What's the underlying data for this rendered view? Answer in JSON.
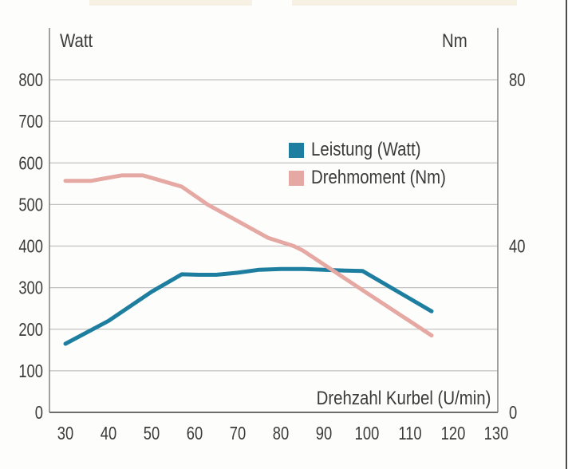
{
  "chart_data": {
    "type": "line",
    "title": "",
    "x_axis": {
      "label": "Drehzahl Kurbel (U/min)",
      "ticks": [
        30,
        40,
        50,
        60,
        70,
        80,
        90,
        100,
        110,
        120,
        130
      ],
      "range": [
        30,
        130
      ]
    },
    "left_axis": {
      "label": "Watt",
      "ticks": [
        0,
        100,
        200,
        300,
        400,
        500,
        600,
        700,
        800
      ],
      "range": [
        0,
        800
      ]
    },
    "right_axis": {
      "label": "Nm",
      "ticks": [
        0,
        40,
        80
      ],
      "range": [
        0,
        80
      ]
    },
    "grid": "horizontal",
    "legend_position": "center",
    "series": [
      {
        "name": "Leistung (Watt)",
        "axis": "left",
        "color": "#1d7e9f",
        "points": [
          [
            30,
            165
          ],
          [
            40,
            220
          ],
          [
            50,
            290
          ],
          [
            57,
            332
          ],
          [
            61,
            331
          ],
          [
            65,
            331
          ],
          [
            70,
            336
          ],
          [
            75,
            343
          ],
          [
            80,
            345
          ],
          [
            85,
            345
          ],
          [
            90,
            343
          ],
          [
            95,
            341
          ],
          [
            99,
            340
          ],
          [
            115,
            243
          ]
        ]
      },
      {
        "name": "Drehmoment (Nm)",
        "axis": "right",
        "color": "#e5a8a3",
        "points": [
          [
            30,
            55.7
          ],
          [
            36,
            55.7
          ],
          [
            43,
            57
          ],
          [
            48,
            57
          ],
          [
            53,
            55.5
          ],
          [
            57,
            54.3
          ],
          [
            63,
            50
          ],
          [
            70,
            46
          ],
          [
            77,
            42
          ],
          [
            83,
            40
          ],
          [
            85,
            39
          ],
          [
            100,
            28.7
          ],
          [
            115,
            18.5
          ]
        ]
      }
    ],
    "colors": {
      "gridline": "#c2c2c2",
      "axis": "#8a8a8a",
      "baseline": "#6e6e6e",
      "text": "#3b3b3b"
    }
  }
}
